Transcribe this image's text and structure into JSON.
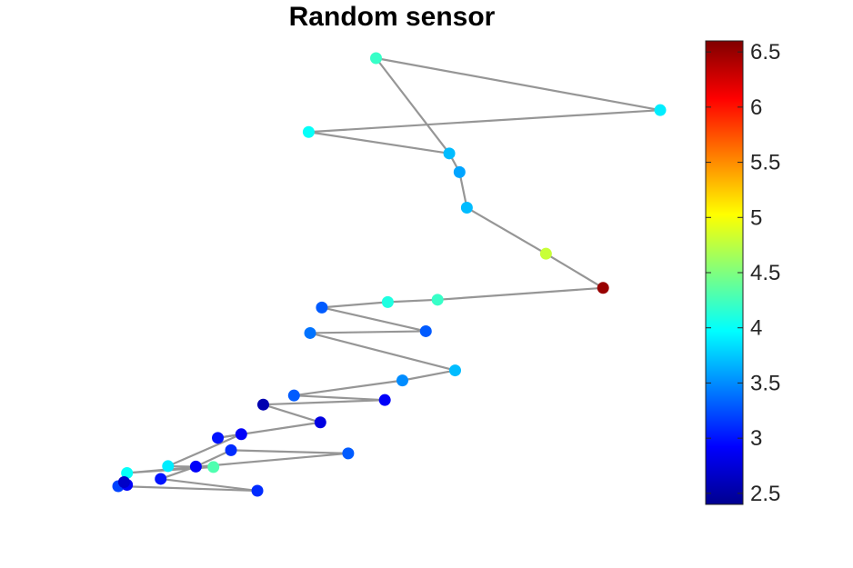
{
  "chart_data": {
    "type": "graph-signal",
    "title": "Random sensor",
    "colormap": "jet",
    "colorbar": {
      "range": [
        2.4,
        6.6
      ],
      "ticks": [
        2.5,
        3,
        3.5,
        4,
        4.5,
        5,
        5.5,
        6,
        6.5
      ],
      "tick_labels": [
        "2.5",
        "3",
        "3.5",
        "4",
        "4.5",
        "5",
        "5.5",
        "6",
        "6.5"
      ]
    },
    "nodes": [
      {
        "id": 1,
        "x": 0.178,
        "y": 0.955,
        "value": 4.2
      },
      {
        "id": 2,
        "x": 0.372,
        "y": 0.841,
        "value": 3.9
      },
      {
        "id": 3,
        "x": 0.132,
        "y": 0.793,
        "value": 4.0
      },
      {
        "id": 4,
        "x": 0.228,
        "y": 0.746,
        "value": 3.7
      },
      {
        "id": 5,
        "x": 0.235,
        "y": 0.705,
        "value": 3.6
      },
      {
        "id": 6,
        "x": 0.24,
        "y": 0.627,
        "value": 3.7
      },
      {
        "id": 7,
        "x": 0.294,
        "y": 0.526,
        "value": 4.8
      },
      {
        "id": 8,
        "x": 0.333,
        "y": 0.451,
        "value": 6.5
      },
      {
        "id": 9,
        "x": 0.22,
        "y": 0.425,
        "value": 4.2
      },
      {
        "id": 10,
        "x": 0.186,
        "y": 0.42,
        "value": 4.1
      },
      {
        "id": 11,
        "x": 0.141,
        "y": 0.408,
        "value": 3.3
      },
      {
        "id": 12,
        "x": 0.212,
        "y": 0.356,
        "value": 3.3
      },
      {
        "id": 13,
        "x": 0.133,
        "y": 0.352,
        "value": 3.4
      },
      {
        "id": 14,
        "x": 0.232,
        "y": 0.27,
        "value": 3.7
      },
      {
        "id": 15,
        "x": 0.196,
        "y": 0.248,
        "value": 3.5
      },
      {
        "id": 16,
        "x": 0.122,
        "y": 0.215,
        "value": 3.3
      },
      {
        "id": 17,
        "x": 0.184,
        "y": 0.205,
        "value": 2.9
      },
      {
        "id": 18,
        "x": 0.101,
        "y": 0.195,
        "value": 2.6
      },
      {
        "id": 19,
        "x": 0.14,
        "y": 0.156,
        "value": 2.8
      },
      {
        "id": 20,
        "x": 0.07,
        "y": 0.122,
        "value": 3.0
      },
      {
        "id": 21,
        "x": 0.086,
        "y": 0.13,
        "value": 2.9
      },
      {
        "id": 22,
        "x": 0.036,
        "y": 0.06,
        "value": 3.9
      },
      {
        "id": 23,
        "x": 0.067,
        "y": 0.058,
        "value": 4.3
      },
      {
        "id": 24,
        "x": 0.008,
        "y": 0.045,
        "value": 4.0
      },
      {
        "id": 25,
        "x": 0.159,
        "y": 0.088,
        "value": 3.3
      },
      {
        "id": 26,
        "x": 0.079,
        "y": 0.095,
        "value": 3.1
      },
      {
        "id": 27,
        "x": 0.055,
        "y": 0.059,
        "value": 2.9
      },
      {
        "id": 28,
        "x": 0.031,
        "y": 0.032,
        "value": 3.0
      },
      {
        "id": 29,
        "x": 0.097,
        "y": 0.006,
        "value": 3.1
      },
      {
        "id": 30,
        "x": 0.002,
        "y": 0.016,
        "value": 3.2
      },
      {
        "id": 31,
        "x": 0.008,
        "y": 0.019,
        "value": 2.9
      },
      {
        "id": 32,
        "x": 0.006,
        "y": 0.025,
        "value": 2.7
      }
    ],
    "edges": [
      [
        1,
        2
      ],
      [
        2,
        3
      ],
      [
        3,
        4
      ],
      [
        1,
        4
      ],
      [
        4,
        5
      ],
      [
        5,
        6
      ],
      [
        6,
        7
      ],
      [
        7,
        8
      ],
      [
        8,
        9
      ],
      [
        9,
        10
      ],
      [
        10,
        11
      ],
      [
        11,
        12
      ],
      [
        12,
        13
      ],
      [
        13,
        14
      ],
      [
        14,
        15
      ],
      [
        15,
        16
      ],
      [
        16,
        17
      ],
      [
        17,
        18
      ],
      [
        18,
        19
      ],
      [
        19,
        20
      ],
      [
        20,
        21
      ],
      [
        21,
        22
      ],
      [
        22,
        23
      ],
      [
        23,
        24
      ],
      [
        24,
        25
      ],
      [
        25,
        26
      ],
      [
        26,
        27
      ],
      [
        27,
        28
      ],
      [
        28,
        29
      ],
      [
        29,
        30
      ],
      [
        30,
        31
      ],
      [
        31,
        32
      ]
    ]
  }
}
